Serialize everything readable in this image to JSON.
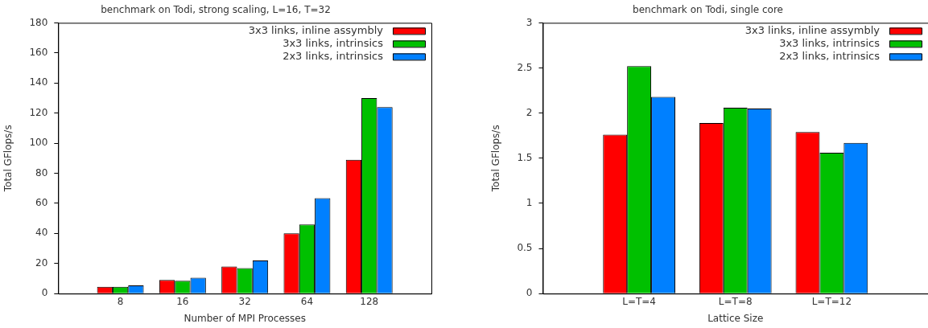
{
  "chart_data": [
    {
      "type": "bar",
      "title": "benchmark on Todi, strong scaling, L=16, T=32",
      "xlabel": "Number of MPI Processes",
      "ylabel": "Total GFlops/s",
      "categories": [
        "8",
        "16",
        "32",
        "64",
        "128"
      ],
      "series": [
        {
          "name": "3x3 links, inline assymbly",
          "color": "#ff0000",
          "values": [
            4.5,
            9,
            18,
            40,
            89
          ]
        },
        {
          "name": "3x3 links, intrinsics",
          "color": "#00c000",
          "values": [
            4.5,
            8.5,
            17,
            46,
            130
          ]
        },
        {
          "name": "2x3 links, intrinsics",
          "color": "#0080ff",
          "values": [
            5.5,
            10.5,
            22,
            63.5,
            124
          ]
        }
      ],
      "ylim": [
        0,
        180
      ],
      "yticks": [
        0,
        20,
        40,
        60,
        80,
        100,
        120,
        140,
        160,
        180
      ],
      "grid": false,
      "legend": "top right"
    },
    {
      "type": "bar",
      "title": "benchmark on Todi, single core",
      "xlabel": "Lattice Size",
      "ylabel": "Total GFlops/s",
      "categories": [
        "L=T=4",
        "L=T=8",
        "L=T=12"
      ],
      "series": [
        {
          "name": "3x3 links, inline assymbly",
          "color": "#ff0000",
          "values": [
            1.76,
            1.89,
            1.79
          ]
        },
        {
          "name": "3x3 links, intrinsics",
          "color": "#00c000",
          "values": [
            2.52,
            2.06,
            1.56
          ]
        },
        {
          "name": "2x3 links, intrinsics",
          "color": "#0080ff",
          "values": [
            2.18,
            2.05,
            1.67
          ]
        }
      ],
      "ylim": [
        0,
        3
      ],
      "yticks": [
        0,
        0.5,
        1,
        1.5,
        2,
        2.5,
        3
      ],
      "grid": false,
      "legend": "top right"
    }
  ]
}
